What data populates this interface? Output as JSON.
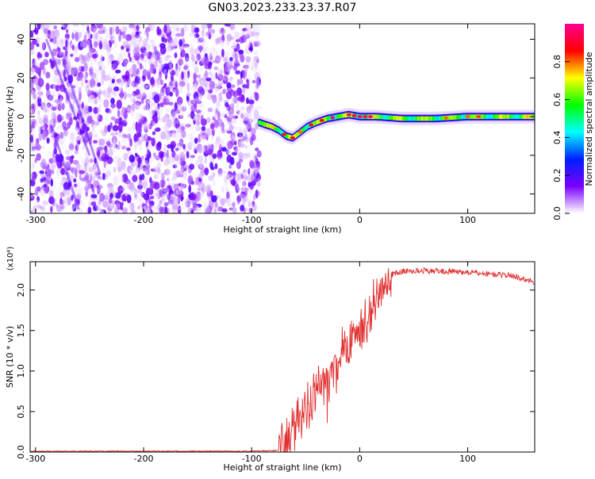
{
  "page_title": "GN03.2023.233.23.37.R07",
  "chart_data": [
    {
      "type": "heatmap",
      "xlabel": "Height of straight line (km)",
      "ylabel": "Frequency (Hz)",
      "xlim": [
        -305,
        162
      ],
      "ylim": [
        -50,
        48
      ],
      "x_ticks": [
        -300,
        -200,
        -100,
        0,
        100
      ],
      "y_ticks": [
        -40,
        -20,
        0,
        20,
        40
      ],
      "colorbar": {
        "label": "Normalized spectral amplitude",
        "range": [
          0,
          1
        ],
        "ticks": [
          "0.0",
          "0.2",
          "0.4",
          "0.6",
          "0.8"
        ],
        "ramp_colors": [
          "#ffffff",
          "#7a00ff",
          "#0020ff",
          "#00ffff",
          "#00ff00",
          "#ffff00",
          "#ff0000",
          "#ff0090"
        ]
      },
      "ridge_frequency": [
        [
          -93,
          -3
        ],
        [
          -88,
          -4
        ],
        [
          -82,
          -5
        ],
        [
          -75,
          -7
        ],
        [
          -68,
          -10
        ],
        [
          -62,
          -11
        ],
        [
          -55,
          -8
        ],
        [
          -48,
          -5
        ],
        [
          -40,
          -3
        ],
        [
          -30,
          -1
        ],
        [
          -20,
          0
        ],
        [
          -10,
          1
        ],
        [
          0,
          0
        ],
        [
          15,
          0
        ],
        [
          40,
          -1
        ],
        [
          70,
          -1
        ],
        [
          100,
          0
        ],
        [
          130,
          0
        ],
        [
          162,
          0
        ]
      ]
    },
    {
      "type": "line",
      "xlabel": "Height of straight line (km)",
      "ylabel": "SNR (10 * v/v)",
      "y_multiplier": "(x10⁴)",
      "xlim": [
        -305,
        162
      ],
      "ylim": [
        0,
        2.35
      ],
      "x_ticks": [
        -300,
        -200,
        -100,
        0,
        100
      ],
      "y_ticks": [
        "0.0",
        "0.5",
        "1.0",
        "1.5",
        "2.0"
      ],
      "line_color": "#e03030",
      "series_envelope": [
        [
          -305,
          0.01
        ],
        [
          -100,
          0.01
        ],
        [
          -75,
          0.02
        ],
        [
          -70,
          0.1
        ],
        [
          -60,
          0.35
        ],
        [
          -50,
          0.55
        ],
        [
          -40,
          0.75
        ],
        [
          -30,
          0.9
        ],
        [
          -20,
          1.05
        ],
        [
          -10,
          1.3
        ],
        [
          0,
          1.5
        ],
        [
          10,
          1.75
        ],
        [
          20,
          2.05
        ],
        [
          30,
          2.2
        ],
        [
          40,
          2.23
        ],
        [
          60,
          2.24
        ],
        [
          80,
          2.23
        ],
        [
          100,
          2.22
        ],
        [
          120,
          2.2
        ],
        [
          140,
          2.18
        ],
        [
          162,
          2.1
        ]
      ]
    }
  ]
}
